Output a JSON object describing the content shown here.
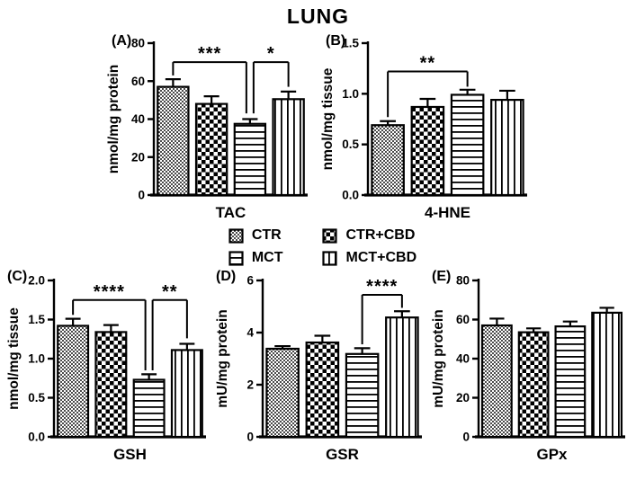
{
  "title": "LUNG",
  "colors": {
    "ink": "#000000",
    "background": "#ffffff"
  },
  "legend": {
    "items": [
      {
        "label": "CTR",
        "pattern": "stipple"
      },
      {
        "label": "CTR+CBD",
        "pattern": "checker"
      },
      {
        "label": "MCT",
        "pattern": "hlines"
      },
      {
        "label": "MCT+CBD",
        "pattern": "vlines"
      }
    ]
  },
  "chart_data": [
    {
      "id": "A",
      "panel_label": "(A)",
      "type": "bar",
      "title": "",
      "xlabel": "TAC",
      "ylabel": "nmol/mg protein",
      "ylim": [
        0,
        80
      ],
      "yticks": [
        0,
        20,
        40,
        60,
        80
      ],
      "ytick_labels": [
        "0",
        "20",
        "40",
        "60",
        "80"
      ],
      "categories": [
        "CTR",
        "CTR+CBD",
        "MCT",
        "MCT+CBD"
      ],
      "values": [
        57,
        48,
        37.5,
        50.5
      ],
      "errors": [
        4,
        4,
        2.5,
        4
      ],
      "significance": [
        {
          "from": 0,
          "to": 2,
          "label": "***",
          "y": 70,
          "left_end": 63,
          "right_end": 43,
          "to_dx": -4
        },
        {
          "from": 2,
          "to": 3,
          "label": "*",
          "y": 70,
          "left_end": 43,
          "right_end": 57,
          "from_dx": 4
        }
      ]
    },
    {
      "id": "B",
      "panel_label": "(B)",
      "type": "bar",
      "title": "",
      "xlabel": "4-HNE",
      "ylabel": "nmol/mg tissue",
      "ylim": [
        0,
        1.5
      ],
      "yticks": [
        0,
        0.5,
        1.0,
        1.5
      ],
      "ytick_labels": [
        "0.0",
        "0.5",
        "1.0",
        "1.5"
      ],
      "categories": [
        "CTR",
        "CTR+CBD",
        "MCT",
        "MCT+CBD"
      ],
      "values": [
        0.69,
        0.87,
        0.99,
        0.94
      ],
      "errors": [
        0.04,
        0.08,
        0.05,
        0.09
      ],
      "significance": [
        {
          "from": 0,
          "to": 2,
          "label": "**",
          "y": 1.22,
          "left_end": 0.77,
          "right_end": 1.07
        }
      ]
    },
    {
      "id": "C",
      "panel_label": "(C)",
      "type": "bar",
      "title": "",
      "xlabel": "GSH",
      "ylabel": "nmol/mg tissue",
      "ylim": [
        0,
        2.0
      ],
      "yticks": [
        0,
        0.5,
        1.0,
        1.5,
        2.0
      ],
      "ytick_labels": [
        "0.0",
        "0.5",
        "1.0",
        "1.5",
        "2.0"
      ],
      "categories": [
        "CTR",
        "CTR+CBD",
        "MCT",
        "MCT+CBD"
      ],
      "values": [
        1.42,
        1.34,
        0.73,
        1.11
      ],
      "errors": [
        0.09,
        0.09,
        0.07,
        0.08
      ],
      "significance": [
        {
          "from": 0,
          "to": 2,
          "label": "****",
          "y": 1.75,
          "left_end": 1.56,
          "right_end": 0.85,
          "to_dx": -4
        },
        {
          "from": 2,
          "to": 3,
          "label": "**",
          "y": 1.75,
          "left_end": 0.85,
          "right_end": 1.26,
          "from_dx": 4
        }
      ]
    },
    {
      "id": "D",
      "panel_label": "(D)",
      "type": "bar",
      "title": "",
      "xlabel": "GSR",
      "ylabel": "mU/mg protein",
      "ylim": [
        0,
        6
      ],
      "yticks": [
        0,
        2,
        4,
        6
      ],
      "ytick_labels": [
        "0",
        "2",
        "4",
        "6"
      ],
      "categories": [
        "CTR",
        "CTR+CBD",
        "MCT",
        "MCT+CBD"
      ],
      "values": [
        3.38,
        3.62,
        3.18,
        4.58
      ],
      "errors": [
        0.1,
        0.26,
        0.22,
        0.24
      ],
      "significance": [
        {
          "from": 2,
          "to": 3,
          "label": "****",
          "y": 5.45,
          "left_end": 3.55,
          "right_end": 4.95
        }
      ]
    },
    {
      "id": "E",
      "panel_label": "(E)",
      "type": "bar",
      "title": "",
      "xlabel": "GPx",
      "ylabel": "mU/mg protein",
      "ylim": [
        0,
        80
      ],
      "yticks": [
        0,
        20,
        40,
        60,
        80
      ],
      "ytick_labels": [
        "0",
        "20",
        "40",
        "60",
        "80"
      ],
      "categories": [
        "CTR",
        "CTR+CBD",
        "MCT",
        "MCT+CBD"
      ],
      "values": [
        57,
        53.5,
        56.5,
        63.5
      ],
      "errors": [
        3.5,
        2,
        2.5,
        2.5
      ],
      "significance": []
    }
  ]
}
